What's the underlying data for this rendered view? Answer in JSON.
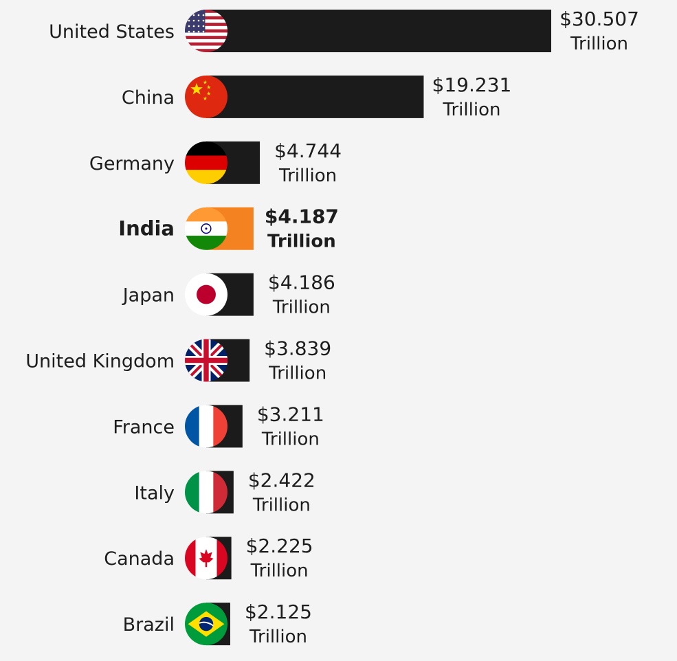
{
  "chart_data": {
    "type": "bar",
    "orientation": "horizontal",
    "title": "",
    "xlabel": "",
    "ylabel": "",
    "unit_label": "Trillion",
    "categories": [
      "United States",
      "China",
      "Germany",
      "India",
      "Japan",
      "United Kingdom",
      "France",
      "Italy",
      "Canada",
      "Brazil"
    ],
    "values": [
      30.507,
      19.231,
      4.744,
      4.187,
      4.186,
      3.839,
      3.211,
      2.422,
      2.225,
      2.125
    ],
    "value_labels": [
      "$30.507",
      "$19.231",
      "$4.744",
      "$4.187",
      "$4.186",
      "$3.839",
      "$3.211",
      "$2.422",
      "$2.225",
      "$2.125"
    ],
    "flag_icons": [
      "usa-flag-icon",
      "china-flag-icon",
      "germany-flag-icon",
      "india-flag-icon",
      "japan-flag-icon",
      "uk-flag-icon",
      "france-flag-icon",
      "italy-flag-icon",
      "canada-flag-icon",
      "brazil-flag-icon"
    ],
    "highlight": "India",
    "colors": {
      "background": "#f4f4f4",
      "bar": "#1b1b1b",
      "highlight_bar": "#f58220",
      "text": "#1d1d1d"
    },
    "grid": false,
    "legend": "none"
  }
}
